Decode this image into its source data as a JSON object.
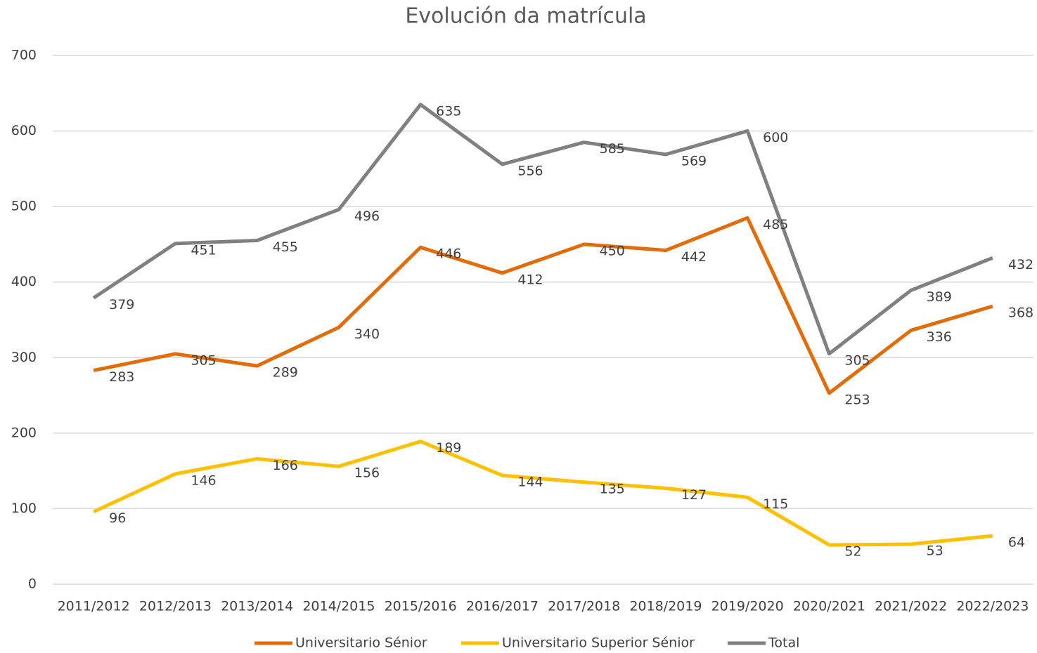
{
  "chart_data": {
    "type": "line",
    "title": "Evolución da matrícula",
    "categories": [
      "2011/2012",
      "2012/2013",
      "2013/2014",
      "2014/2015",
      "2015/2016",
      "2016/2017",
      "2017/2018",
      "2018/2019",
      "2019/2020",
      "2020/2021",
      "2021/2022",
      "2022/2023"
    ],
    "series": [
      {
        "name": "Universitario Sénior",
        "color": "#e36c0a",
        "values": [
          283,
          305,
          289,
          340,
          446,
          412,
          450,
          442,
          485,
          253,
          336,
          368
        ]
      },
      {
        "name": "Universitario Superior Sénior",
        "color": "#ffc000",
        "values": [
          96,
          146,
          166,
          156,
          189,
          144,
          135,
          127,
          115,
          52,
          53,
          64
        ]
      },
      {
        "name": "Total",
        "color": "#808080",
        "values": [
          379,
          451,
          455,
          496,
          635,
          556,
          585,
          569,
          600,
          305,
          389,
          432
        ]
      }
    ],
    "ylim": [
      0,
      700
    ],
    "yticks": [
      0,
      100,
      200,
      300,
      400,
      500,
      600,
      700
    ],
    "grid": true,
    "legend": "bottom"
  }
}
